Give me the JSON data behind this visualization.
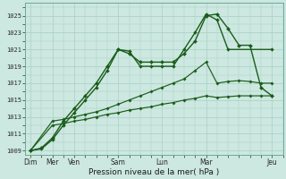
{
  "xlabel": "Pression niveau de la mer( hPa )",
  "ylim": [
    1008.5,
    1026.5
  ],
  "yticks": [
    1009,
    1011,
    1013,
    1015,
    1017,
    1019,
    1021,
    1023,
    1025
  ],
  "xtick_labels": [
    "Dim",
    "Mer",
    "Ven",
    "Sam",
    "Lun",
    "Mar",
    "Jeu"
  ],
  "xtick_positions": [
    0,
    2,
    4,
    8,
    12,
    16,
    22
  ],
  "xlim": [
    -0.5,
    23
  ],
  "background_color": "#cce8e0",
  "grid_color": "#a8cfc4",
  "line_color": "#1a5c1a",
  "lines": [
    {
      "x": [
        0,
        1,
        2,
        3,
        4,
        5,
        6,
        7,
        8,
        9,
        10,
        11,
        12,
        13,
        14,
        15,
        16,
        17,
        18,
        19,
        20,
        21,
        22
      ],
      "y": [
        1009,
        1009.3,
        1010.5,
        1012.5,
        1014.0,
        1015.5,
        1017.0,
        1019.0,
        1021.0,
        1020.5,
        1019.5,
        1019.5,
        1019.5,
        1019.5,
        1020.5,
        1022.0,
        1025.0,
        1025.2,
        1023.5,
        1021.5,
        1021.5,
        1016.5,
        1015.5
      ]
    },
    {
      "x": [
        0,
        1,
        2,
        3,
        4,
        5,
        6,
        7,
        8,
        9,
        10,
        11,
        12,
        13,
        14,
        15,
        16,
        17,
        18,
        22
      ],
      "y": [
        1009,
        1009.2,
        1010.3,
        1012.0,
        1013.5,
        1015.0,
        1016.5,
        1018.5,
        1021.0,
        1020.8,
        1019.0,
        1019.0,
        1019.0,
        1019.0,
        1021.0,
        1023.0,
        1025.2,
        1024.5,
        1021.0,
        1021.0
      ]
    },
    {
      "x": [
        0,
        2,
        3,
        4,
        5,
        6,
        7,
        8,
        9,
        10,
        11,
        12,
        13,
        14,
        15,
        16,
        17,
        18,
        19,
        20,
        21,
        22
      ],
      "y": [
        1009,
        1012.5,
        1012.7,
        1013.0,
        1013.3,
        1013.6,
        1014.0,
        1014.5,
        1015.0,
        1015.5,
        1016.0,
        1016.5,
        1017.0,
        1017.5,
        1018.5,
        1019.5,
        1017.0,
        1017.2,
        1017.3,
        1017.2,
        1017.0,
        1017.0
      ]
    },
    {
      "x": [
        0,
        2,
        3,
        4,
        5,
        6,
        7,
        8,
        9,
        10,
        11,
        12,
        13,
        14,
        15,
        16,
        17,
        18,
        19,
        20,
        21,
        22
      ],
      "y": [
        1009,
        1012.0,
        1012.2,
        1012.5,
        1012.7,
        1013.0,
        1013.3,
        1013.5,
        1013.8,
        1014.0,
        1014.2,
        1014.5,
        1014.7,
        1015.0,
        1015.2,
        1015.5,
        1015.3,
        1015.4,
        1015.5,
        1015.5,
        1015.5,
        1015.5
      ]
    }
  ]
}
